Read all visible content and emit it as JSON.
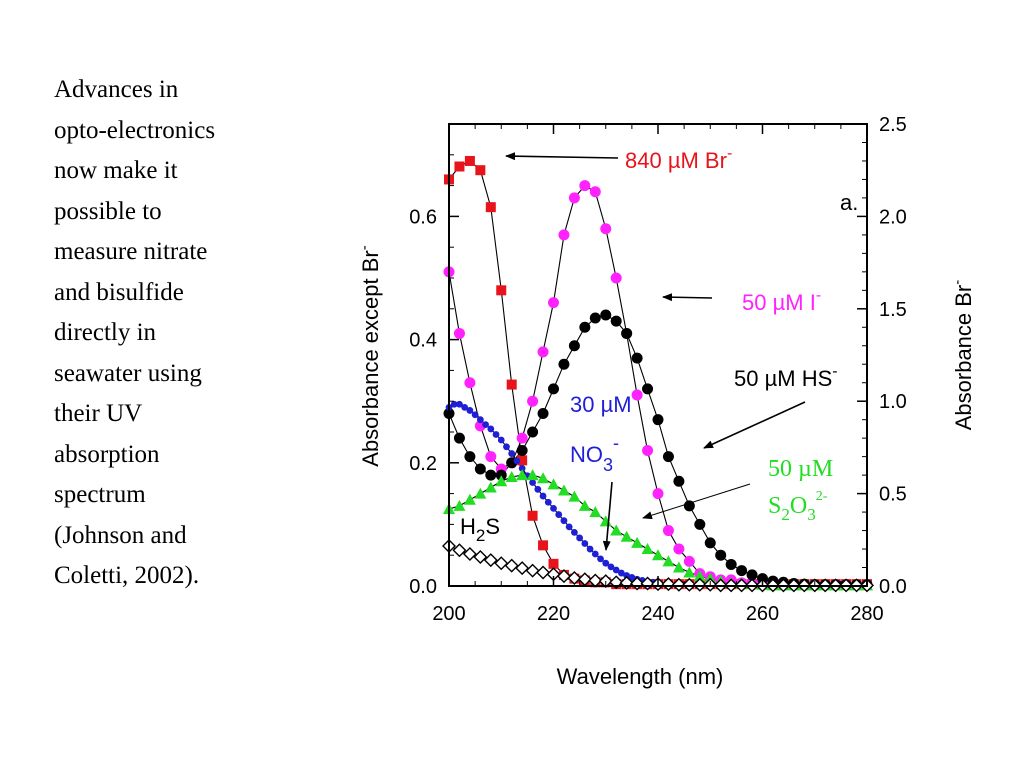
{
  "side_text": {
    "lines": [
      "Advances in",
      "opto-electronics",
      "now make it",
      "possible to",
      "measure nitrate",
      "and bisulfide",
      "directly in",
      "seawater using",
      "their UV",
      "absorption",
      "spectrum",
      "(Johnson and",
      "Coletti, 2002)."
    ]
  },
  "chart_data": {
    "type": "scatter",
    "title": "",
    "panel_label": "a.",
    "xlabel": "Wavelength (nm)",
    "ylabel_left": "Absorbance except Br",
    "ylabel_left_sup": "-",
    "ylabel_right": "Absorbance Br",
    "ylabel_right_sup": "-",
    "xlim": [
      200,
      280
    ],
    "ylim_left": [
      0,
      0.75
    ],
    "ylim_right": [
      0,
      2.5
    ],
    "x_ticks": [
      "200",
      "220",
      "240",
      "260",
      "280"
    ],
    "y_ticks_left": [
      "0.0",
      "0.2",
      "0.4",
      "0.6"
    ],
    "y_ticks_right": [
      "0.0",
      "0.5",
      "1.0",
      "1.5",
      "2.0",
      "2.5"
    ],
    "grid": false,
    "annotations": {
      "br": {
        "text": "840 µM Br",
        "sup": "-",
        "color": "#e8141b"
      },
      "iodide": {
        "text": "50 µM I",
        "sup": "-",
        "color": "#ff22ff"
      },
      "hs": {
        "text": "50 µM HS",
        "sup": "-",
        "color": "#000000"
      },
      "no3_a": {
        "text": "30 µM",
        "color": "#1f1fd6"
      },
      "no3_b": {
        "text": "NO",
        "sub": "3",
        "sup": "-",
        "color": "#1f1fd6"
      },
      "s2o3_a": {
        "text": "50 µM",
        "color": "#22dd22"
      },
      "s2o3_b": {
        "text": "S",
        "sub1": "2",
        "mid": "O",
        "sub2": "3",
        "sup": "2-",
        "color": "#22dd22"
      },
      "h2s": {
        "text": "H",
        "sub": "2",
        "tail": "S",
        "color": "#000000"
      }
    },
    "series": [
      {
        "name": "840 µM Br-",
        "axis": "right",
        "marker": "square",
        "color": "#e8141b",
        "x": [
          200,
          202,
          204,
          206,
          208,
          210,
          212,
          214,
          216,
          218,
          220,
          222,
          224,
          226,
          228,
          230,
          232,
          234,
          236,
          238,
          240,
          242,
          244,
          246,
          248,
          250,
          252,
          254,
          256,
          258,
          260,
          262,
          264,
          266,
          268,
          270,
          272,
          274,
          276,
          278,
          280
        ],
        "y": [
          2.2,
          2.27,
          2.3,
          2.25,
          2.05,
          1.6,
          1.09,
          0.68,
          0.38,
          0.22,
          0.12,
          0.06,
          0.04,
          0.03,
          0.02,
          0.02,
          0.01,
          0.01,
          0.01,
          0.01,
          0.01,
          0.01,
          0.01,
          0.01,
          0.01,
          0.01,
          0.01,
          0.01,
          0.01,
          0.01,
          0.01,
          0.01,
          0.01,
          0.01,
          0.01,
          0.01,
          0.01,
          0.01,
          0.01,
          0.01,
          0.01
        ]
      },
      {
        "name": "50 µM I-",
        "axis": "left",
        "marker": "circle",
        "color": "#ff22ff",
        "x": [
          200,
          202,
          204,
          206,
          208,
          210,
          212,
          214,
          216,
          218,
          220,
          222,
          224,
          226,
          228,
          230,
          232,
          234,
          236,
          238,
          240,
          242,
          244,
          246,
          248,
          250,
          252,
          254,
          256,
          258,
          260,
          262,
          264,
          266,
          268,
          270,
          272,
          274,
          276,
          278,
          280
        ],
        "y": [
          0.51,
          0.41,
          0.33,
          0.26,
          0.21,
          0.19,
          0.2,
          0.24,
          0.3,
          0.38,
          0.46,
          0.57,
          0.63,
          0.65,
          0.64,
          0.58,
          0.5,
          0.41,
          0.31,
          0.22,
          0.15,
          0.09,
          0.06,
          0.04,
          0.02,
          0.015,
          0.01,
          0.01,
          0.005,
          0.005,
          0.005,
          0.003,
          0.003,
          0.002,
          0.002,
          0.002,
          0.002,
          0.002,
          0.002,
          0.002,
          0.002
        ]
      },
      {
        "name": "50 µM HS-",
        "axis": "left",
        "marker": "circle",
        "color": "#000000",
        "x": [
          200,
          202,
          204,
          206,
          208,
          210,
          212,
          214,
          216,
          218,
          220,
          222,
          224,
          226,
          228,
          230,
          232,
          234,
          236,
          238,
          240,
          242,
          244,
          246,
          248,
          250,
          252,
          254,
          256,
          258,
          260,
          262,
          264,
          266,
          268,
          270,
          272,
          274,
          276,
          278,
          280
        ],
        "y": [
          0.28,
          0.24,
          0.21,
          0.19,
          0.18,
          0.18,
          0.2,
          0.22,
          0.25,
          0.28,
          0.32,
          0.36,
          0.39,
          0.42,
          0.435,
          0.44,
          0.43,
          0.41,
          0.37,
          0.32,
          0.27,
          0.21,
          0.17,
          0.13,
          0.1,
          0.07,
          0.05,
          0.035,
          0.025,
          0.018,
          0.012,
          0.008,
          0.006,
          0.004,
          0.003,
          0.002,
          0.002,
          0.002,
          0.002,
          0.002,
          0.002
        ]
      },
      {
        "name": "30 µM NO3-",
        "axis": "left",
        "marker": "small-circle",
        "color": "#1f1fd6",
        "x": [
          200,
          201,
          202,
          203,
          204,
          205,
          206,
          207,
          208,
          209,
          210,
          211,
          212,
          213,
          214,
          215,
          216,
          217,
          218,
          219,
          220,
          221,
          222,
          223,
          224,
          225,
          226,
          227,
          228,
          229,
          230,
          231,
          232,
          233,
          234,
          235,
          236,
          237,
          238,
          239,
          240,
          242,
          244,
          246,
          248,
          250,
          252,
          254,
          256,
          258,
          260,
          262,
          264,
          266,
          268,
          270,
          272,
          274,
          276,
          278,
          280
        ],
        "y": [
          0.29,
          0.295,
          0.295,
          0.29,
          0.285,
          0.278,
          0.27,
          0.262,
          0.255,
          0.246,
          0.237,
          0.226,
          0.215,
          0.203,
          0.191,
          0.179,
          0.168,
          0.157,
          0.146,
          0.136,
          0.126,
          0.116,
          0.106,
          0.096,
          0.087,
          0.078,
          0.069,
          0.06,
          0.052,
          0.044,
          0.037,
          0.031,
          0.026,
          0.021,
          0.017,
          0.014,
          0.011,
          0.009,
          0.007,
          0.006,
          0.005,
          0.004,
          0.003,
          0.002,
          0.002,
          0.001,
          0.001,
          0.001,
          0.001,
          0.001,
          0.001,
          0.001,
          0.001,
          0.001,
          0.001,
          0.001,
          0.001,
          0.001,
          0.001,
          0.001,
          0.001
        ]
      },
      {
        "name": "50 µM S2O3 2-",
        "axis": "left",
        "marker": "triangle",
        "color": "#22dd22",
        "x": [
          200,
          202,
          204,
          206,
          208,
          210,
          212,
          214,
          216,
          218,
          220,
          222,
          224,
          226,
          228,
          230,
          232,
          234,
          236,
          238,
          240,
          242,
          244,
          246,
          248,
          250,
          252,
          254,
          256,
          258,
          260,
          262,
          264,
          266,
          268,
          270,
          272,
          274,
          276,
          278,
          280
        ],
        "y": [
          0.125,
          0.13,
          0.14,
          0.15,
          0.16,
          0.17,
          0.177,
          0.18,
          0.18,
          0.175,
          0.165,
          0.155,
          0.145,
          0.13,
          0.12,
          0.105,
          0.09,
          0.08,
          0.07,
          0.06,
          0.05,
          0.04,
          0.03,
          0.022,
          0.016,
          0.012,
          0.008,
          0.005,
          0.004,
          0.003,
          0.002,
          0.001,
          0.001,
          0.001,
          0.001,
          0.001,
          0.001,
          0.001,
          0.001,
          0.001,
          0.001
        ]
      },
      {
        "name": "H2S",
        "axis": "left",
        "marker": "diamond",
        "color": "#000000",
        "x": [
          200,
          202,
          204,
          206,
          208,
          210,
          212,
          214,
          216,
          218,
          220,
          222,
          224,
          226,
          228,
          230,
          232,
          234,
          236,
          238,
          240,
          242,
          244,
          246,
          248,
          250,
          252,
          254,
          256,
          258,
          260,
          262,
          264,
          266,
          268,
          270,
          272,
          274,
          276,
          278,
          280
        ],
        "y": [
          0.065,
          0.058,
          0.052,
          0.047,
          0.042,
          0.037,
          0.033,
          0.029,
          0.025,
          0.022,
          0.019,
          0.016,
          0.013,
          0.011,
          0.009,
          0.008,
          0.006,
          0.005,
          0.004,
          0.004,
          0.003,
          0.003,
          0.002,
          0.002,
          0.002,
          0.002,
          0.001,
          0.001,
          0.001,
          0.001,
          0.001,
          0.001,
          0.001,
          0.001,
          0.001,
          0.001,
          0.001,
          0.001,
          0.001,
          0.001,
          0.001
        ]
      }
    ]
  }
}
